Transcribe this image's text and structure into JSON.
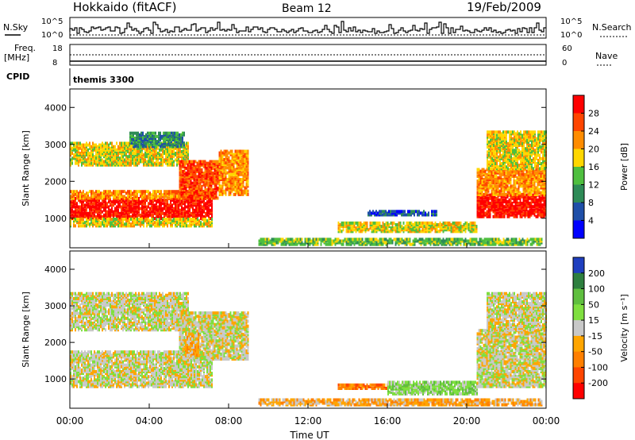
{
  "header": {
    "station": "Hokkaido (fitACF)",
    "beam": "Beam 12",
    "date": "19/Feb/2009"
  },
  "meta_panels": {
    "nsky_label": "N.Sky",
    "nsky_ticks": [
      "10^5",
      "10^0"
    ],
    "nsearch_label": "N.Search",
    "freq_label": "Freq.",
    "freq_unit": "[MHz]",
    "freq_ticks": [
      "18",
      "8"
    ],
    "nave_label": "Nave",
    "nave_ticks": [
      "60",
      "0"
    ],
    "cpid_label": "CPID",
    "cpid_value": "themis 3300"
  },
  "colors": {
    "power_scale": [
      "#0000ff",
      "#1f4fa8",
      "#2e8b57",
      "#4fbf3f",
      "#ffd700",
      "#ff8c00",
      "#ff4500",
      "#ff0000"
    ],
    "velocity_scale": [
      "#1f3fbf",
      "#2e7f3f",
      "#5fbf3f",
      "#7fdf3f",
      "#c8c8c8",
      "#ffa500",
      "#ff7f00",
      "#ff4500",
      "#ff0000"
    ],
    "ground_scatter": "#c0c0c0"
  },
  "chart_data": [
    {
      "type": "heatmap",
      "name": "power",
      "ylabel": "Slant Range [km]",
      "xlabel": "Time UT",
      "x_ticks": [
        "00:00",
        "04:00",
        "08:00",
        "12:00",
        "16:00",
        "20:00",
        "00:00"
      ],
      "y_ticks": [
        1000,
        2000,
        3000,
        4000
      ],
      "ylim": [
        200,
        4500
      ],
      "xlim_hours": [
        0,
        24
      ],
      "colorbar": {
        "label": "Power [dB]",
        "ticks": [
          4,
          8,
          12,
          16,
          20,
          24,
          28
        ],
        "range": [
          0,
          32
        ]
      },
      "regions": [
        {
          "t0": 0.0,
          "t1": 7.2,
          "r0": 950,
          "r1": 1500,
          "level": 7
        },
        {
          "t0": 0.0,
          "t1": 7.2,
          "r0": 1500,
          "r1": 1700,
          "level": 5
        },
        {
          "t0": 0.0,
          "t1": 7.2,
          "r0": 750,
          "r1": 950,
          "level": 4
        },
        {
          "t0": 0.0,
          "t1": 6.0,
          "r0": 2400,
          "r1": 3000,
          "level": 4
        },
        {
          "t0": 3.0,
          "t1": 5.8,
          "r0": 2900,
          "r1": 3300,
          "level": 2
        },
        {
          "t0": 5.5,
          "t1": 7.5,
          "r0": 1500,
          "r1": 2500,
          "level": 6
        },
        {
          "t0": 7.5,
          "t1": 9.0,
          "r0": 1600,
          "r1": 2800,
          "level": 5
        },
        {
          "t0": 9.5,
          "t1": 23.8,
          "r0": 250,
          "r1": 400,
          "level": 3
        },
        {
          "t0": 13.5,
          "t1": 20.5,
          "r0": 600,
          "r1": 850,
          "level": 4
        },
        {
          "t0": 15.0,
          "t1": 18.5,
          "r0": 1050,
          "r1": 1150,
          "level": 1
        },
        {
          "t0": 20.5,
          "t1": 24.0,
          "r0": 1000,
          "r1": 1600,
          "level": 7
        },
        {
          "t0": 20.5,
          "t1": 24.0,
          "r0": 1600,
          "r1": 2300,
          "level": 5
        },
        {
          "t0": 21.0,
          "t1": 24.0,
          "r0": 2300,
          "r1": 3300,
          "level": 4
        }
      ]
    },
    {
      "type": "heatmap",
      "name": "velocity",
      "ylabel": "Slant Range [km]",
      "xlabel": "Time UT",
      "x_ticks": [
        "00:00",
        "04:00",
        "08:00",
        "12:00",
        "16:00",
        "20:00",
        "00:00"
      ],
      "y_ticks": [
        1000,
        2000,
        3000,
        4000
      ],
      "ylim": [
        200,
        4500
      ],
      "xlim_hours": [
        0,
        24
      ],
      "colorbar": {
        "label": "Velocity [m s⁻¹]",
        "ticks": [
          200,
          100,
          50,
          15,
          -15,
          -50,
          -100,
          -200
        ],
        "range": [
          -250,
          250
        ]
      },
      "regions": [
        {
          "t0": 0.0,
          "t1": 7.2,
          "r0": 750,
          "r1": 1700,
          "level": 4
        },
        {
          "t0": 0.0,
          "t1": 6.0,
          "r0": 2300,
          "r1": 3300,
          "level": 4
        },
        {
          "t0": 5.5,
          "t1": 9.0,
          "r0": 1500,
          "r1": 2800,
          "level": 4
        },
        {
          "t0": 5.8,
          "t1": 6.5,
          "r0": 1600,
          "r1": 2200,
          "level": 5
        },
        {
          "t0": 9.5,
          "t1": 23.8,
          "r0": 250,
          "r1": 400,
          "level": 5
        },
        {
          "t0": 13.5,
          "t1": 18.0,
          "r0": 700,
          "r1": 800,
          "level": 6
        },
        {
          "t0": 16.0,
          "t1": 20.5,
          "r0": 550,
          "r1": 900,
          "level": 3
        },
        {
          "t0": 20.5,
          "t1": 24.0,
          "r0": 750,
          "r1": 2300,
          "level": 4
        },
        {
          "t0": 21.0,
          "t1": 24.0,
          "r0": 2300,
          "r1": 3300,
          "level": 4
        }
      ]
    }
  ]
}
